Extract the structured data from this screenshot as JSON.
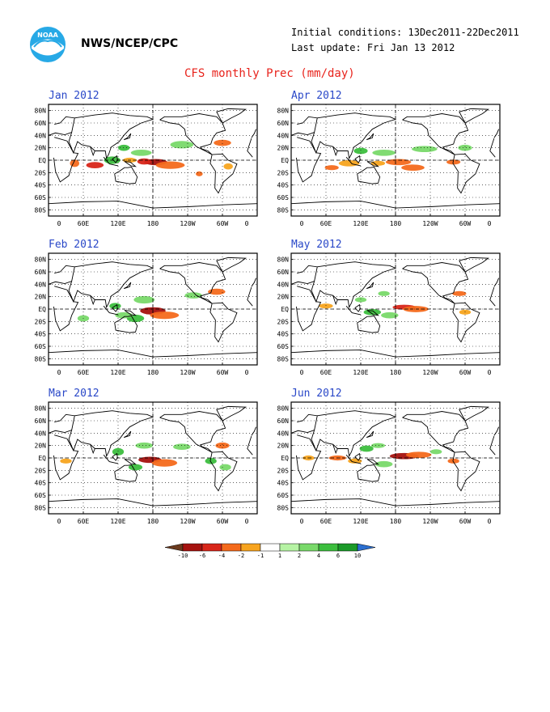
{
  "header": {
    "org": "NWS/NCEP/CPC",
    "initial_conditions": "Initial conditions: 13Dec2011-22Dec2011",
    "last_update": "Last update: Fri Jan 13 2012",
    "title": "CFS monthly Prec (mm/day)"
  },
  "logo": {
    "text": "NOAA",
    "icon": "noaa-logo-icon"
  },
  "axes": {
    "lat_labels": [
      "80N",
      "60N",
      "40N",
      "20N",
      "EQ",
      "20S",
      "40S",
      "60S",
      "80S"
    ],
    "lon_labels": [
      "0",
      "60E",
      "120E",
      "180",
      "120W",
      "60W",
      "0"
    ]
  },
  "panels": [
    {
      "title": "Jan 2012"
    },
    {
      "title": "Apr 2012"
    },
    {
      "title": "Feb 2012"
    },
    {
      "title": "May 2012"
    },
    {
      "title": "Mar 2012"
    },
    {
      "title": "Jun 2012"
    }
  ],
  "colorbar": {
    "labels": [
      "-10",
      "-6",
      "-4",
      "-2",
      "-1",
      "1",
      "2",
      "4",
      "6",
      "10"
    ],
    "colors": [
      "#6b3a1e",
      "#a5120f",
      "#d8261a",
      "#f46a1c",
      "#f7a41f",
      "#ffffff",
      "#b6f3a4",
      "#79d96a",
      "#3cbe3e",
      "#1b9a29",
      "#2c6fd0"
    ]
  }
}
